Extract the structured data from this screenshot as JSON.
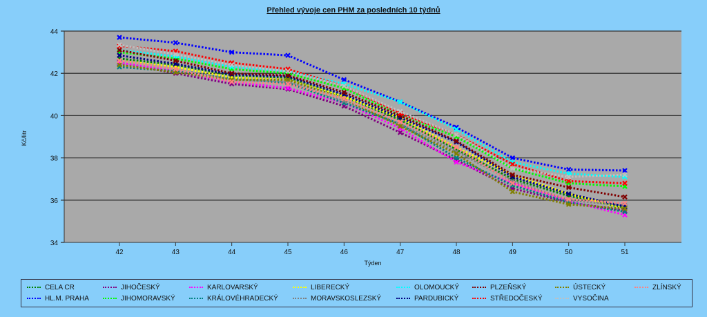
{
  "chart_data": {
    "type": "line",
    "title": "Přehled vývoje cen PHM za posledních 10 týdnů",
    "xlabel": "Týden",
    "ylabel": "Kč/litr",
    "x": [
      42,
      43,
      44,
      45,
      46,
      47,
      48,
      49,
      50,
      51
    ],
    "ylim": [
      34,
      44
    ],
    "yticks": [
      34,
      36,
      38,
      40,
      42,
      44
    ],
    "grid": true,
    "legend_position": "bottom",
    "series": [
      {
        "name": "CELA CR",
        "color": "#008000",
        "values": [
          42.7,
          42.4,
          41.9,
          41.8,
          40.9,
          39.8,
          38.4,
          37.0,
          36.2,
          35.65
        ]
      },
      {
        "name": "HL.M. PRAHA",
        "color": "#0000ff",
        "values": [
          43.7,
          43.45,
          43.0,
          42.85,
          41.7,
          40.65,
          39.45,
          38.0,
          37.45,
          37.4
        ]
      },
      {
        "name": "JIHOČESKÝ",
        "color": "#800080",
        "values": [
          42.5,
          42.0,
          41.5,
          41.25,
          40.45,
          39.2,
          37.9,
          36.55,
          35.9,
          35.5
        ]
      },
      {
        "name": "JIHOMORAVSKÝ",
        "color": "#00ff00",
        "values": [
          43.0,
          42.7,
          42.2,
          42.0,
          41.3,
          40.0,
          39.0,
          37.5,
          36.8,
          36.65
        ]
      },
      {
        "name": "KARLOVARSKÝ",
        "color": "#ff00ff",
        "values": [
          42.5,
          42.1,
          41.6,
          41.3,
          40.6,
          39.4,
          37.8,
          36.8,
          35.95,
          35.3
        ]
      },
      {
        "name": "KRÁLOVÉHRADECKÝ",
        "color": "#008080",
        "values": [
          42.3,
          42.1,
          41.75,
          41.55,
          40.6,
          39.6,
          38.0,
          36.7,
          35.9,
          35.45
        ]
      },
      {
        "name": "LIBERECKÝ",
        "color": "#ffff00",
        "values": [
          42.6,
          42.3,
          41.8,
          41.7,
          40.9,
          39.9,
          38.5,
          37.2,
          36.3,
          35.6
        ]
      },
      {
        "name": "MORAVSKOSLEZSKÝ",
        "color": "#808080",
        "values": [
          42.6,
          42.2,
          41.7,
          41.6,
          40.7,
          39.6,
          38.3,
          36.9,
          36.0,
          35.75
        ]
      },
      {
        "name": "OLOMOUCKÝ",
        "color": "#00ffff",
        "values": [
          43.1,
          42.8,
          42.3,
          42.1,
          41.5,
          40.65,
          39.35,
          37.8,
          37.25,
          37.1
        ]
      },
      {
        "name": "PARDUBICKÝ",
        "color": "#000080",
        "values": [
          42.85,
          42.45,
          41.95,
          41.85,
          41.0,
          39.9,
          38.75,
          37.1,
          36.3,
          35.7
        ]
      },
      {
        "name": "PLZEŇSKÝ",
        "color": "#800000",
        "values": [
          43.1,
          42.6,
          42.0,
          41.9,
          41.1,
          40.0,
          38.8,
          37.2,
          36.6,
          36.15
        ]
      },
      {
        "name": "STŘEDOČESKÝ",
        "color": "#ff0000",
        "values": [
          43.3,
          43.05,
          42.5,
          42.2,
          41.4,
          40.1,
          39.1,
          37.7,
          36.9,
          36.8
        ]
      },
      {
        "name": "ÚSTECKÝ",
        "color": "#808000",
        "values": [
          42.4,
          42.05,
          41.7,
          41.7,
          40.8,
          39.5,
          38.2,
          36.4,
          35.8,
          35.6
        ]
      },
      {
        "name": "VYSOČINA",
        "color": "#c0c0c0",
        "values": [
          43.35,
          42.9,
          42.4,
          42.1,
          41.4,
          40.2,
          39.1,
          37.5,
          37.1,
          37.2
        ]
      },
      {
        "name": "ZLÍNSKÝ",
        "color": "#ff8080",
        "values": [
          42.6,
          42.2,
          41.6,
          41.5,
          40.8,
          39.7,
          38.5,
          36.8,
          36.05,
          35.85
        ]
      }
    ]
  }
}
